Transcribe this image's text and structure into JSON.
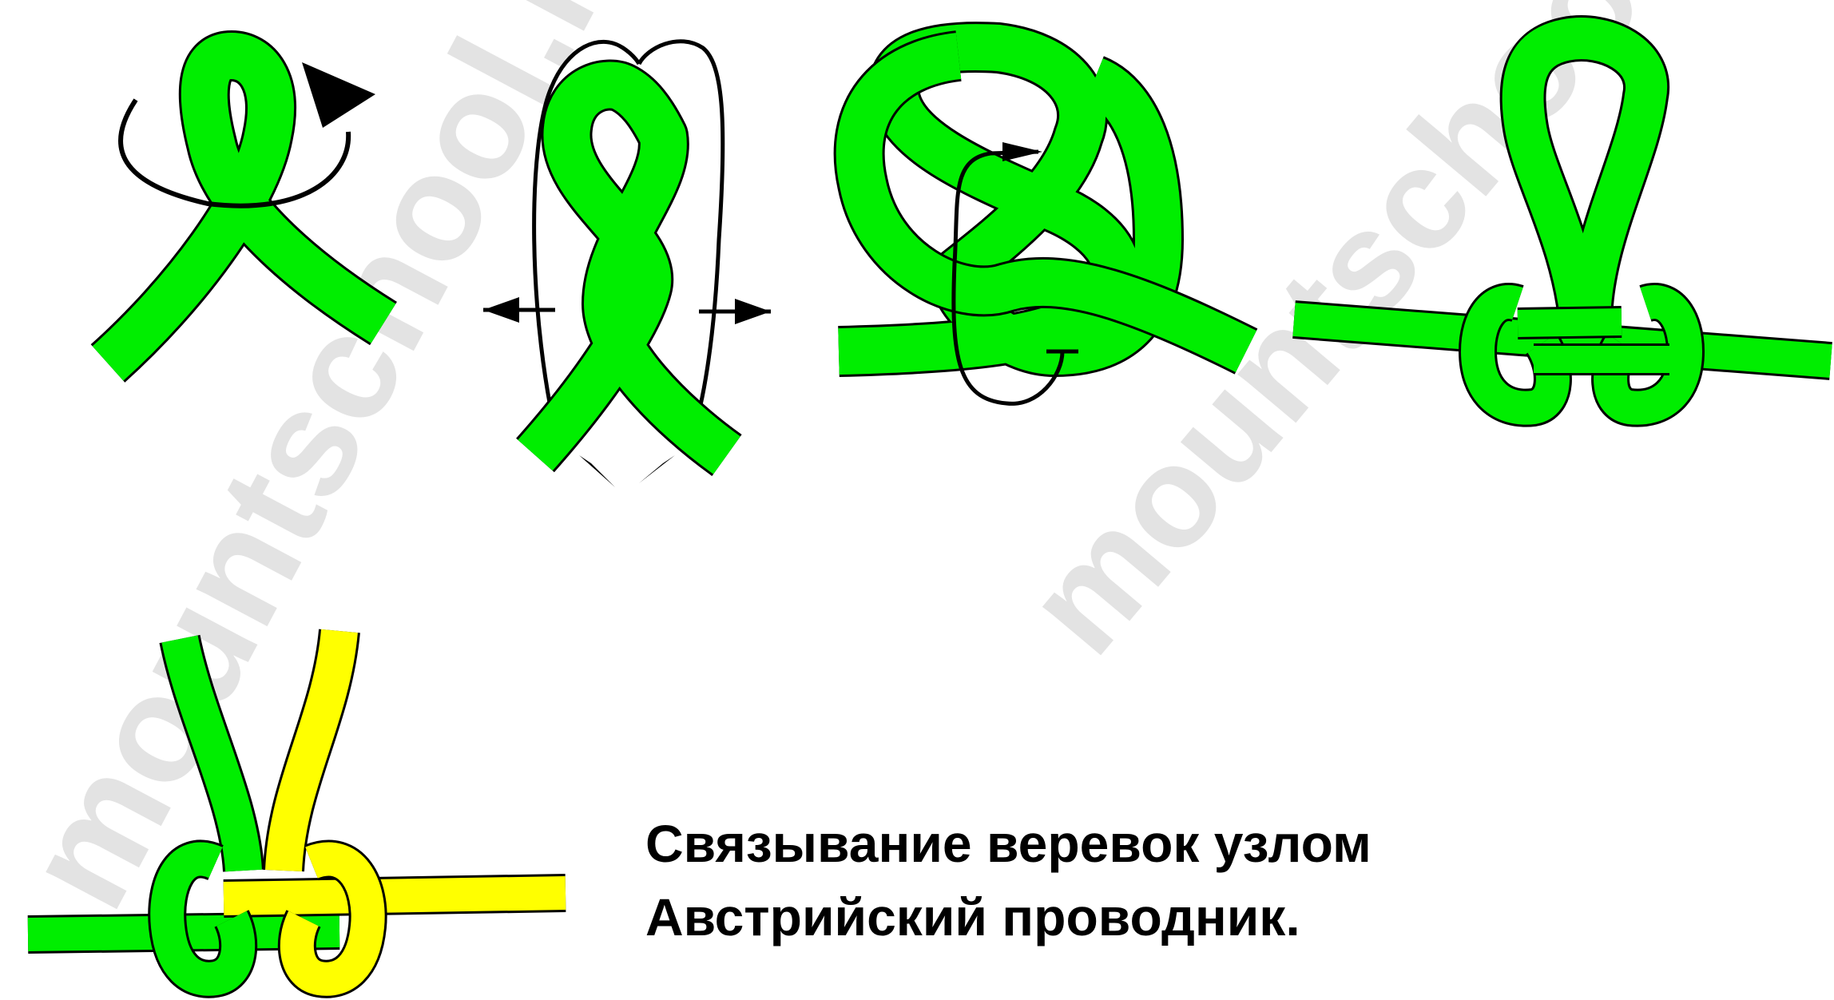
{
  "caption": {
    "line1": "Связывание веревок узлом",
    "line2": "Австрийский проводник."
  },
  "watermark": {
    "text": "mountschool.ru"
  },
  "colors": {
    "rope_green": "#00ee00",
    "rope_yellow": "#ffff00",
    "outline": "#000000",
    "watermark": "#e3e3e3",
    "background": "#ffffff"
  }
}
